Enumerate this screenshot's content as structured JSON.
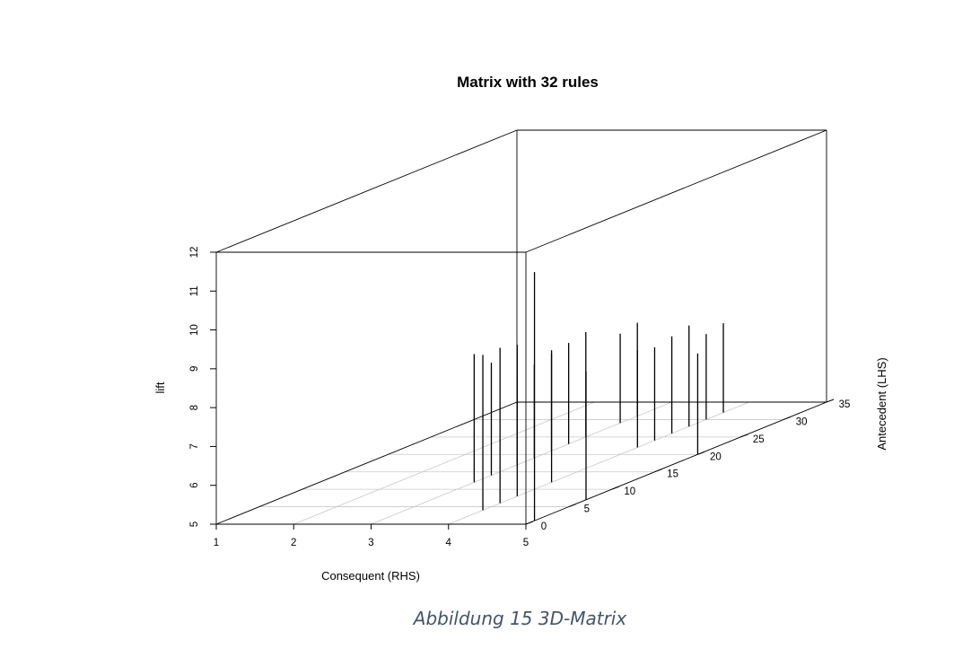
{
  "caption": "Abbildung 15 3D-Matrix",
  "chart_data": {
    "type": "scatter3d-histogram",
    "title": "Matrix with 32 rules",
    "xlabel": "Consequent (RHS)",
    "ylabel": "Antecedent (LHS)",
    "zlabel": "lift",
    "xlim": [
      1,
      5
    ],
    "ylim": [
      0,
      35
    ],
    "zlim": [
      5,
      12
    ],
    "x_ticks": [
      "1",
      "2",
      "3",
      "4",
      "5"
    ],
    "y_ticks": [
      "0",
      "5",
      "10",
      "15",
      "20",
      "25",
      "30",
      "35"
    ],
    "z_ticks": [
      "5",
      "6",
      "7",
      "8",
      "9",
      "10",
      "11",
      "12"
    ],
    "grid": true,
    "points": [
      {
        "x": 3,
        "y": 17,
        "z": 7.3
      },
      {
        "x": 3,
        "y": 19,
        "z": 7.4
      },
      {
        "x": 3,
        "y": 21,
        "z": 7.5
      },
      {
        "x": 3,
        "y": 23,
        "z": 7.6
      },
      {
        "x": 3,
        "y": 25,
        "z": 7.7
      },
      {
        "x": 3,
        "y": 14,
        "z": 7.9
      },
      {
        "x": 3,
        "y": 29,
        "z": 7.3
      },
      {
        "x": 3,
        "y": 31,
        "z": 7.4
      },
      {
        "x": 3,
        "y": 12,
        "z": 8.3
      },
      {
        "x": 4,
        "y": 22,
        "z": 7.5
      },
      {
        "x": 4,
        "y": 24,
        "z": 7.4
      },
      {
        "x": 4,
        "y": 26,
        "z": 7.5
      },
      {
        "x": 4,
        "y": 28,
        "z": 7.6
      },
      {
        "x": 4,
        "y": 12,
        "z": 8.4
      },
      {
        "x": 4,
        "y": 30,
        "z": 7.2
      },
      {
        "x": 4,
        "y": 6,
        "z": 9.0
      },
      {
        "x": 4,
        "y": 8,
        "z": 8.9
      },
      {
        "x": 4,
        "y": 32,
        "z": 7.3
      },
      {
        "x": 4,
        "y": 4,
        "z": 9.0
      },
      {
        "x": 5,
        "y": 20,
        "z": 7.6
      },
      {
        "x": 5,
        "y": 7,
        "z": 8.3
      },
      {
        "x": 5,
        "y": 1,
        "z": 11.4
      }
    ]
  }
}
